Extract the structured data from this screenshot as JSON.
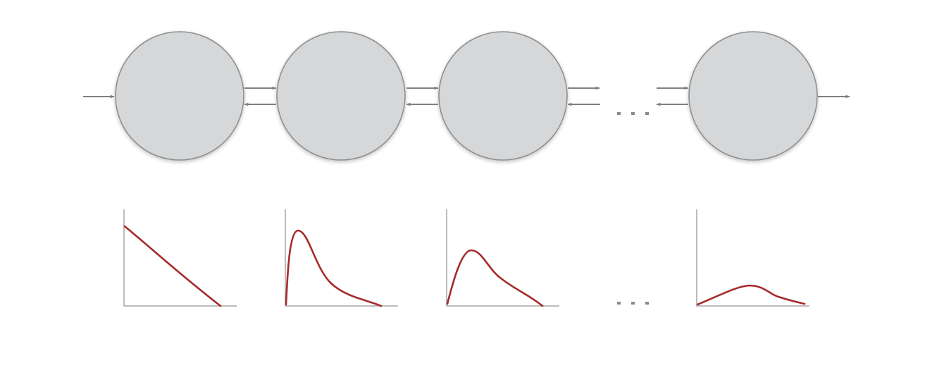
{
  "diagram": {
    "node_count_shown": 4,
    "ellipsis_between": [
      3,
      4
    ],
    "colors": {
      "node_fill": "#d6d7d8",
      "node_stroke": "#8d8e8f",
      "arrow": "#7f8080",
      "axis": "#a5a6a7",
      "curve": "#a52a2a"
    },
    "connections": [
      {
        "from": "input",
        "to": "node-1",
        "direction": "forward"
      },
      {
        "from": "node-1",
        "to": "node-2",
        "direction": "bidirectional"
      },
      {
        "from": "node-2",
        "to": "node-3",
        "direction": "bidirectional"
      },
      {
        "from": "node-3",
        "to": "ellipsis",
        "direction": "bidirectional"
      },
      {
        "from": "ellipsis",
        "to": "node-4",
        "direction": "bidirectional"
      },
      {
        "from": "node-4",
        "to": "output",
        "direction": "forward"
      }
    ],
    "distributions": [
      {
        "node": "node-1",
        "shape": "decreasing"
      },
      {
        "node": "node-2",
        "shape": "sharp-early-peak"
      },
      {
        "node": "node-3",
        "shape": "lower-peak"
      },
      {
        "node": "node-4",
        "shape": "flat-broad-peak"
      }
    ]
  }
}
